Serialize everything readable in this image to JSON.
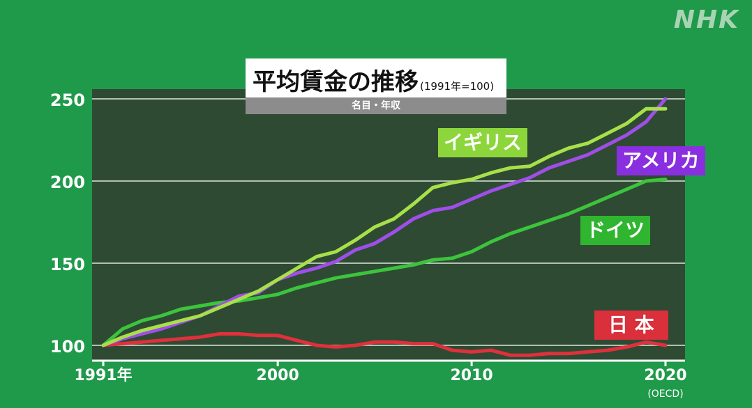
{
  "logo": "NHK",
  "chart_data": {
    "type": "line",
    "title": "平均賃金の推移",
    "title_note": "(1991年=100)",
    "subtitle": "名目・年収",
    "source": "(OECD)",
    "x_tick_labels": [
      "1991年",
      "2000",
      "2010",
      "2020"
    ],
    "x_ticks": [
      1991,
      2000,
      2010,
      2020
    ],
    "y_ticks": [
      100,
      150,
      200,
      250
    ],
    "xlim": [
      1991,
      2020
    ],
    "ylim": [
      95,
      255
    ],
    "grid": true,
    "plot_bg": "#2e4a33",
    "series": [
      {
        "name": "イギリス",
        "color": "#a8e04a",
        "x": [
          1991,
          1992,
          1993,
          1994,
          1995,
          1996,
          1997,
          1998,
          1999,
          2000,
          2001,
          2002,
          2003,
          2004,
          2005,
          2006,
          2007,
          2008,
          2009,
          2010,
          2011,
          2012,
          2013,
          2014,
          2015,
          2016,
          2017,
          2018,
          2019,
          2020
        ],
        "values": [
          100,
          105,
          109,
          112,
          115,
          118,
          123,
          128,
          133,
          140,
          147,
          154,
          157,
          164,
          172,
          177,
          186,
          196,
          199,
          201,
          205,
          208,
          209,
          215,
          220,
          223,
          229,
          235,
          244,
          244
        ]
      },
      {
        "name": "アメリカ",
        "color": "#a04ee8",
        "x": [
          1991,
          1992,
          1993,
          1994,
          1995,
          1996,
          1997,
          1998,
          1999,
          2000,
          2001,
          2002,
          2003,
          2004,
          2005,
          2006,
          2007,
          2008,
          2009,
          2010,
          2011,
          2012,
          2013,
          2014,
          2015,
          2016,
          2017,
          2018,
          2019,
          2020
        ],
        "values": [
          100,
          104,
          107,
          110,
          114,
          118,
          124,
          130,
          132,
          140,
          144,
          147,
          151,
          158,
          162,
          169,
          177,
          182,
          184,
          189,
          194,
          198,
          202,
          208,
          212,
          216,
          222,
          228,
          236,
          250
        ]
      },
      {
        "name": "ドイツ",
        "color": "#3cc43c",
        "x": [
          1991,
          1992,
          1993,
          1994,
          1995,
          1996,
          1997,
          1998,
          1999,
          2000,
          2001,
          2002,
          2003,
          2004,
          2005,
          2006,
          2007,
          2008,
          2009,
          2010,
          2011,
          2012,
          2013,
          2014,
          2015,
          2016,
          2017,
          2018,
          2019,
          2020
        ],
        "values": [
          100,
          110,
          115,
          118,
          122,
          124,
          126,
          127,
          129,
          131,
          135,
          138,
          141,
          143,
          145,
          147,
          149,
          152,
          153,
          157,
          163,
          168,
          172,
          176,
          180,
          185,
          190,
          195,
          200,
          201
        ]
      },
      {
        "name": "日本",
        "color": "#e0303c",
        "x": [
          1991,
          1992,
          1993,
          1994,
          1995,
          1996,
          1997,
          1998,
          1999,
          2000,
          2001,
          2002,
          2003,
          2004,
          2005,
          2006,
          2007,
          2008,
          2009,
          2010,
          2011,
          2012,
          2013,
          2014,
          2015,
          2016,
          2017,
          2018,
          2019,
          2020
        ],
        "values": [
          100,
          101,
          102,
          103,
          104,
          105,
          107,
          107,
          106,
          106,
          103,
          100,
          99,
          100,
          102,
          102,
          101,
          101,
          97,
          96,
          97,
          94,
          94,
          95,
          95,
          96,
          97,
          99,
          102,
          100
        ]
      }
    ],
    "series_labels": [
      {
        "text": "イギリス",
        "bg": "#8cd63c"
      },
      {
        "text": "アメリカ",
        "bg": "#8a2fe0"
      },
      {
        "text": "ドイツ",
        "bg": "#2fb52f"
      },
      {
        "text": "日 本",
        "bg": "#d9303c"
      }
    ]
  }
}
